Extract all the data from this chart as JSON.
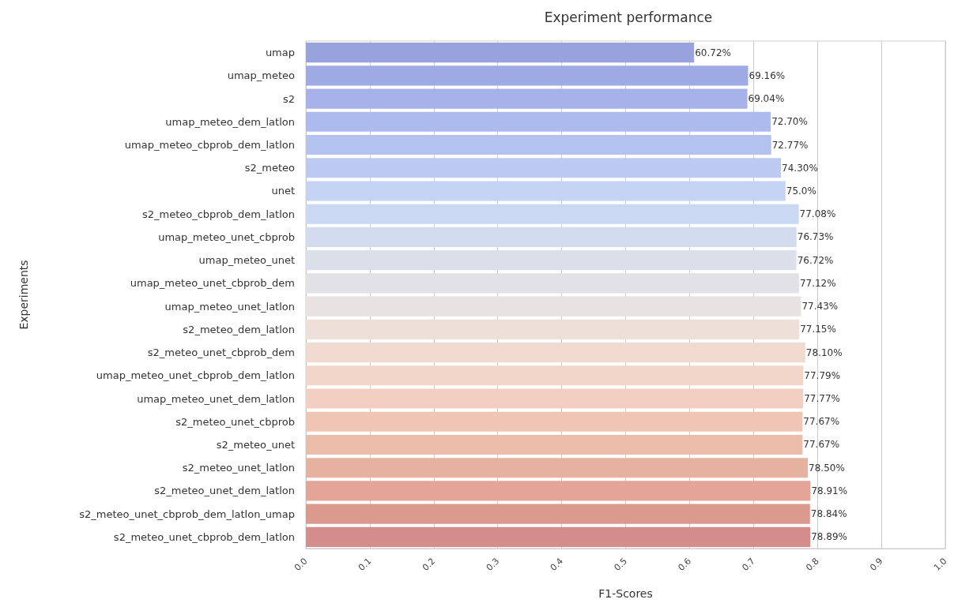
{
  "chart_data": {
    "type": "bar",
    "orientation": "horizontal",
    "title": "Experiment performance",
    "xlabel": "F1-Scores",
    "ylabel": "Experiments",
    "categories": [
      "umap",
      "umap_meteo",
      "s2",
      "umap_meteo_dem_latlon",
      "umap_meteo_cbprob_dem_latlon",
      "s2_meteo",
      "unet",
      "s2_meteo_cbprob_dem_latlon",
      "umap_meteo_unet_cbprob",
      "umap_meteo_unet",
      "umap_meteo_unet_cbprob_dem",
      "umap_meteo_unet_latlon",
      "s2_meteo_dem_latlon",
      "s2_meteo_unet_cbprob_dem",
      "umap_meteo_unet_cbprob_dem_latlon",
      "umap_meteo_unet_dem_latlon",
      "s2_meteo_unet_cbprob",
      "s2_meteo_unet",
      "s2_meteo_unet_latlon",
      "s2_meteo_unet_dem_latlon",
      "s2_meteo_unet_cbprob_dem_latlon_umap",
      "s2_meteo_unet_cbprob_dem_latlon"
    ],
    "values": [
      0.6072,
      0.6916,
      0.6904,
      0.727,
      0.7277,
      0.743,
      0.75,
      0.7708,
      0.7673,
      0.7672,
      0.7712,
      0.7743,
      0.7715,
      0.781,
      0.7779,
      0.7777,
      0.7767,
      0.7767,
      0.785,
      0.7891,
      0.7884,
      0.7889
    ],
    "value_labels": [
      "60.72%",
      "69.16%",
      "69.04%",
      "72.70%",
      "72.77%",
      "74.30%",
      "75.0%",
      "77.08%",
      "76.73%",
      "76.72%",
      "77.12%",
      "77.43%",
      "77.15%",
      "78.10%",
      "77.79%",
      "77.77%",
      "77.67%",
      "77.67%",
      "78.50%",
      "78.91%",
      "78.84%",
      "78.89%"
    ],
    "colors": [
      "#98a3de",
      "#9eaae4",
      "#a5b1e8",
      "#adbaed",
      "#b4c2f0",
      "#bccaf2",
      "#c4d2f4",
      "#cbd8f3",
      "#d3dcef",
      "#dadfea",
      "#e2e2e6",
      "#e9e2e2",
      "#eedfd9",
      "#f1dbd1",
      "#f2d5c9",
      "#f1cebf",
      "#efc6b5",
      "#ebbcaa",
      "#e7b1a0",
      "#e2a597",
      "#dc9a8f",
      "#d48d8b"
    ],
    "xlim": [
      0,
      1
    ],
    "xticks": [
      {
        "value": 0,
        "label": "0.0"
      },
      0.1,
      0.2,
      0.3,
      0.4,
      0.5,
      0.6,
      0.7,
      0.8,
      0.9,
      {
        "value": 1,
        "label": "1.0"
      }
    ],
    "grid": "x"
  }
}
